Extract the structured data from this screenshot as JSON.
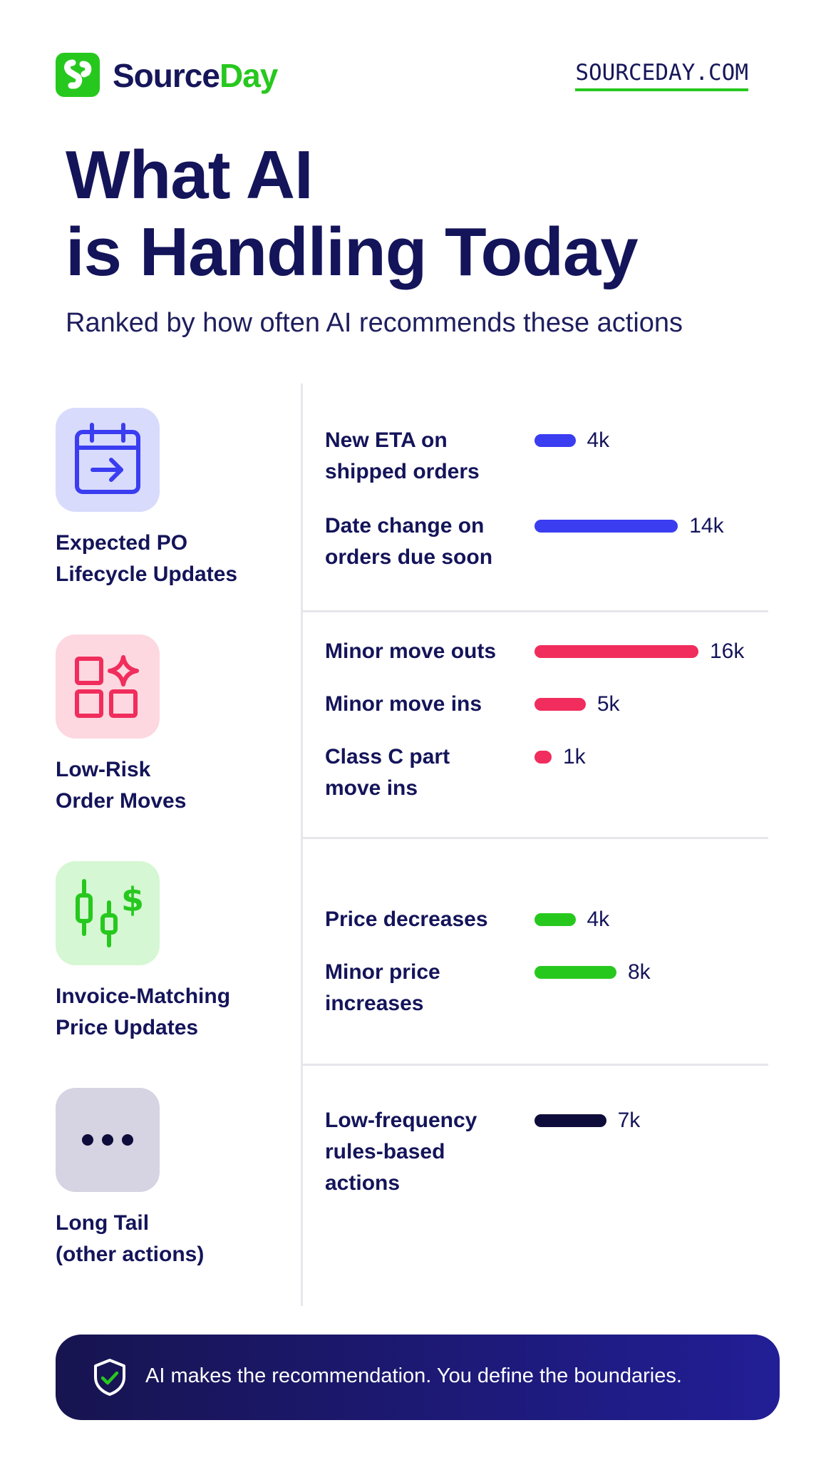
{
  "brand": {
    "name_part1": "Source",
    "name_part2": "Day",
    "website": "SOURCEDAY.COM",
    "colors": {
      "navy": "#14145a",
      "green": "#27c81e"
    }
  },
  "header": {
    "title_line1": "What AI",
    "title_line2": "is Handling Today",
    "subtitle": "Ranked by how often AI recommends these actions"
  },
  "chart_data": {
    "type": "bar",
    "orientation": "horizontal",
    "unit": "k",
    "groups": [
      {
        "name": "Expected PO\nLifecycle Updates",
        "icon": "calendar-arrow-icon",
        "color": "#3a3df0",
        "icon_bg": "#d9dbfd",
        "items": [
          {
            "label": "New ETA on\nshipped orders",
            "value": 4,
            "value_label": "4k"
          },
          {
            "label": "Date change on\norders due soon",
            "value": 14,
            "value_label": "14k"
          }
        ]
      },
      {
        "name": "Low-Risk\nOrder Moves",
        "icon": "grid-sparkle-icon",
        "color": "#f02d5c",
        "icon_bg": "#fdd8e0",
        "items": [
          {
            "label": "Minor move outs",
            "value": 16,
            "value_label": "16k"
          },
          {
            "label": "Minor move ins",
            "value": 5,
            "value_label": "5k"
          },
          {
            "label": "Class C part\nmove ins",
            "value": 1,
            "value_label": "1k"
          }
        ]
      },
      {
        "name": "Invoice-Matching\nPrice Updates",
        "icon": "candlestick-dollar-icon",
        "color": "#27c81e",
        "icon_bg": "#d5f7d3",
        "items": [
          {
            "label": "Price decreases",
            "value": 4,
            "value_label": "4k"
          },
          {
            "label": "Minor price\nincreases",
            "value": 8,
            "value_label": "8k"
          }
        ]
      },
      {
        "name": "Long Tail\n(other actions)",
        "icon": "ellipsis-icon",
        "color": "#0e0c3a",
        "icon_bg": "#d6d3e2",
        "items": [
          {
            "label": "Low-frequency\nrules-based\nactions",
            "value": 7,
            "value_label": "7k"
          }
        ]
      }
    ]
  },
  "footer": {
    "icon": "shield-check-icon",
    "text": "AI makes the recommendation. You define the boundaries."
  }
}
